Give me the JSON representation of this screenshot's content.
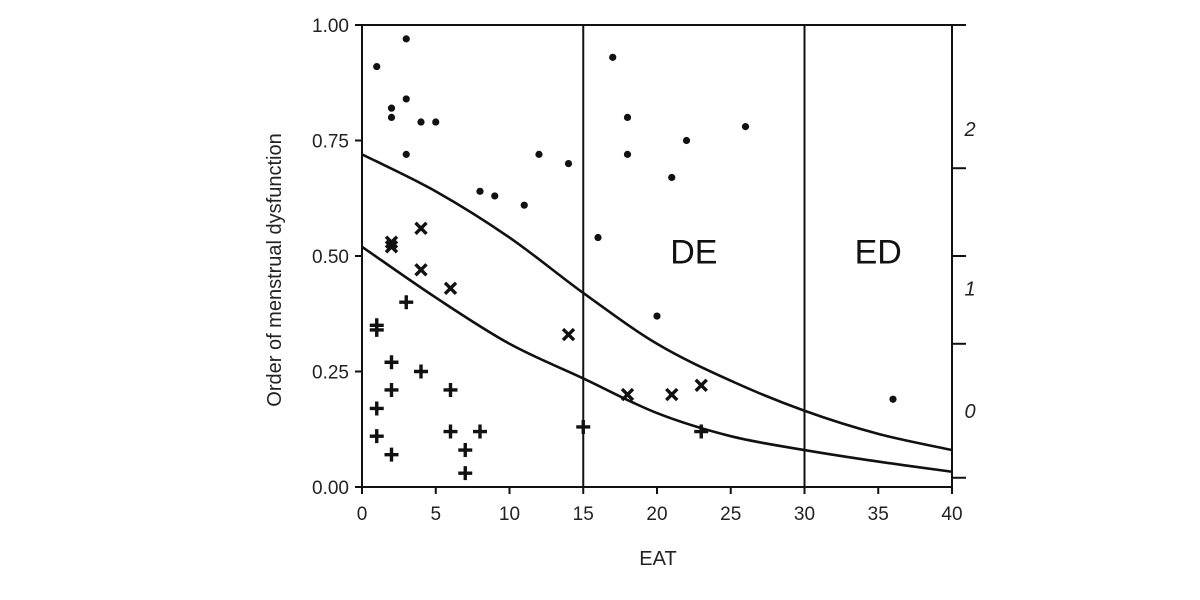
{
  "chart_data": {
    "type": "scatter",
    "xlabel": "EAT",
    "ylabel": "Order of menstrual dysfunction",
    "xlim": [
      0,
      40
    ],
    "ylim": [
      0,
      1
    ],
    "x_ticks": [
      {
        "value": 0,
        "label": "0"
      },
      {
        "value": 5,
        "label": "5"
      },
      {
        "value": 10,
        "label": "10"
      },
      {
        "value": 15,
        "label": "15"
      },
      {
        "value": 20,
        "label": "20"
      },
      {
        "value": 25,
        "label": "25"
      },
      {
        "value": 30,
        "label": "30"
      },
      {
        "value": 35,
        "label": "35"
      },
      {
        "value": 40,
        "label": "40"
      }
    ],
    "y_ticks": [
      {
        "value": 0,
        "label": "0.00"
      },
      {
        "value": 0.25,
        "label": "0.25"
      },
      {
        "value": 0.5,
        "label": "0.50"
      },
      {
        "value": 0.75,
        "label": "0.75"
      },
      {
        "value": 1,
        "label": "1.00"
      }
    ],
    "right_axis": {
      "tick_values": [
        0.02,
        0.31,
        0.5,
        0.69,
        1.0
      ],
      "labels": [
        {
          "value": 0.165,
          "label": "0"
        },
        {
          "value": 0.43,
          "label": "1"
        },
        {
          "value": 0.775,
          "label": "2"
        }
      ]
    },
    "vertical_lines": [
      15,
      30
    ],
    "regions": [
      {
        "label": "DE",
        "x": 22.5,
        "y": 0.51
      },
      {
        "label": "ED",
        "x": 35.0,
        "y": 0.51
      }
    ],
    "curves": [
      {
        "name": "upper-boundary",
        "points": [
          [
            0,
            0.72
          ],
          [
            5,
            0.64
          ],
          [
            10,
            0.54
          ],
          [
            15,
            0.42
          ],
          [
            20,
            0.31
          ],
          [
            25,
            0.23
          ],
          [
            30,
            0.165
          ],
          [
            35,
            0.115
          ],
          [
            40,
            0.08
          ]
        ]
      },
      {
        "name": "lower-boundary",
        "points": [
          [
            0,
            0.52
          ],
          [
            5,
            0.41
          ],
          [
            10,
            0.31
          ],
          [
            15,
            0.235
          ],
          [
            20,
            0.16
          ],
          [
            25,
            0.11
          ],
          [
            30,
            0.08
          ],
          [
            35,
            0.055
          ],
          [
            40,
            0.033
          ]
        ]
      }
    ],
    "series": [
      {
        "name": "dot",
        "marker": "dot",
        "points": [
          [
            1,
            0.91
          ],
          [
            3,
            0.97
          ],
          [
            2,
            0.82
          ],
          [
            3,
            0.84
          ],
          [
            2,
            0.8
          ],
          [
            4,
            0.79
          ],
          [
            5,
            0.79
          ],
          [
            3,
            0.72
          ],
          [
            8,
            0.64
          ],
          [
            9,
            0.63
          ],
          [
            11,
            0.61
          ],
          [
            12,
            0.72
          ],
          [
            14,
            0.7
          ],
          [
            16,
            0.54
          ],
          [
            17,
            0.93
          ],
          [
            18,
            0.8
          ],
          [
            18,
            0.72
          ],
          [
            21,
            0.67
          ],
          [
            22,
            0.75
          ],
          [
            26,
            0.78
          ],
          [
            20,
            0.37
          ],
          [
            36,
            0.19
          ]
        ]
      },
      {
        "name": "cross",
        "marker": "x",
        "points": [
          [
            2,
            0.53
          ],
          [
            2,
            0.52
          ],
          [
            4,
            0.56
          ],
          [
            4,
            0.47
          ],
          [
            6,
            0.43
          ],
          [
            14,
            0.33
          ],
          [
            18,
            0.2
          ],
          [
            21,
            0.2
          ],
          [
            23,
            0.22
          ]
        ]
      },
      {
        "name": "plus",
        "marker": "plus",
        "points": [
          [
            1,
            0.35
          ],
          [
            1,
            0.34
          ],
          [
            3,
            0.4
          ],
          [
            2,
            0.27
          ],
          [
            4,
            0.25
          ],
          [
            2,
            0.21
          ],
          [
            6,
            0.21
          ],
          [
            1,
            0.17
          ],
          [
            1,
            0.11
          ],
          [
            6,
            0.12
          ],
          [
            8,
            0.12
          ],
          [
            2,
            0.07
          ],
          [
            7,
            0.08
          ],
          [
            7,
            0.03
          ],
          [
            15,
            0.13
          ],
          [
            23,
            0.12
          ]
        ]
      }
    ]
  }
}
